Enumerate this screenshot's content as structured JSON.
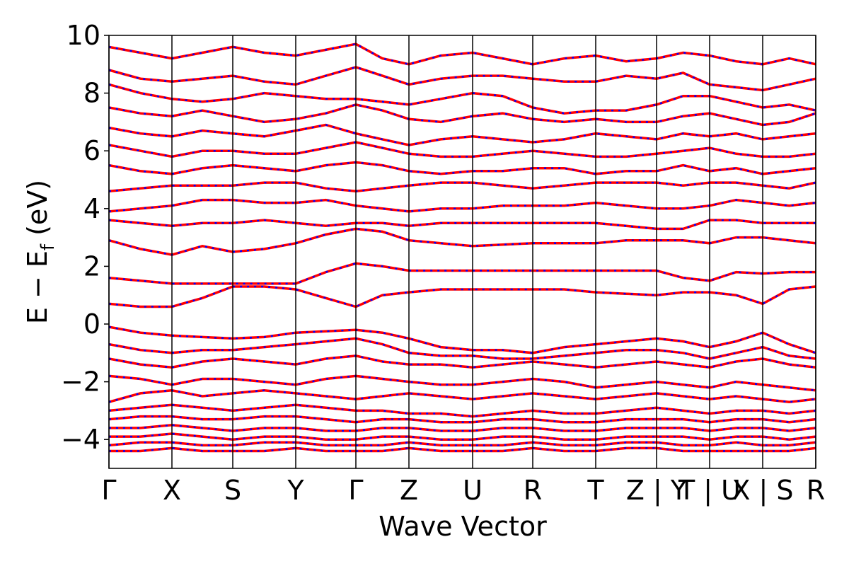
{
  "chart_data": {
    "type": "bands",
    "xlabel": "Wave Vector",
    "ylabel": [
      "E − E",
      "f",
      " (eV)"
    ],
    "line_color": "#ff0000",
    "dash_color": "#0000ff",
    "xlim": [
      0,
      9.99
    ],
    "ylim": [
      -5,
      10
    ],
    "xticks": [
      {
        "value": 0,
        "label": "Γ"
      },
      {
        "value": 0.89,
        "label": "X"
      },
      {
        "value": 1.75,
        "label": "S"
      },
      {
        "value": 2.64,
        "label": "Y"
      },
      {
        "value": 3.49,
        "label": "Γ"
      },
      {
        "value": 4.24,
        "label": "Z"
      },
      {
        "value": 5.14,
        "label": "U"
      },
      {
        "value": 5.99,
        "label": "R"
      },
      {
        "value": 6.88,
        "label": "T"
      },
      {
        "value": 7.74,
        "label": "Z | Y"
      },
      {
        "value": 8.49,
        "label": "T | U"
      },
      {
        "value": 9.24,
        "label": "X | S"
      },
      {
        "value": 9.99,
        "label": "R"
      }
    ],
    "yticks": [
      {
        "value": -4,
        "label": "−4"
      },
      {
        "value": -2,
        "label": "−2"
      },
      0,
      2,
      4,
      6,
      8,
      10
    ],
    "x": [
      0,
      0.445,
      0.89,
      1.32,
      1.75,
      2.195,
      2.64,
      3.065,
      3.49,
      3.865,
      4.24,
      4.69,
      5.14,
      5.565,
      5.99,
      6.435,
      6.88,
      7.31,
      7.74,
      8.115,
      8.49,
      8.865,
      9.24,
      9.615,
      9.99
    ],
    "series": [
      {
        "values": [
          0.7,
          0.6,
          0.6,
          0.9,
          1.3,
          1.3,
          1.2,
          0.9,
          0.6,
          1.0,
          1.1,
          1.2,
          1.2,
          1.2,
          1.2,
          1.2,
          1.1,
          1.05,
          1.0,
          1.1,
          1.1,
          1.0,
          0.7,
          1.2,
          1.3
        ]
      },
      {
        "values": [
          1.6,
          1.5,
          1.4,
          1.4,
          1.4,
          1.4,
          1.4,
          1.8,
          2.1,
          2.0,
          1.85,
          1.85,
          1.85,
          1.85,
          1.85,
          1.85,
          1.85,
          1.85,
          1.85,
          1.6,
          1.5,
          1.8,
          1.75,
          1.8,
          1.8
        ]
      },
      {
        "values": [
          2.9,
          2.6,
          2.4,
          2.7,
          2.5,
          2.6,
          2.8,
          3.1,
          3.3,
          3.2,
          2.9,
          2.8,
          2.7,
          2.75,
          2.8,
          2.8,
          2.8,
          2.9,
          2.9,
          2.9,
          2.8,
          3.0,
          3.0,
          2.9,
          2.8
        ]
      },
      {
        "values": [
          3.6,
          3.5,
          3.4,
          3.5,
          3.5,
          3.6,
          3.5,
          3.4,
          3.5,
          3.5,
          3.4,
          3.5,
          3.5,
          3.5,
          3.5,
          3.5,
          3.5,
          3.4,
          3.3,
          3.3,
          3.6,
          3.6,
          3.5,
          3.5,
          3.5
        ]
      },
      {
        "values": [
          3.9,
          4.0,
          4.1,
          4.3,
          4.3,
          4.2,
          4.2,
          4.3,
          4.1,
          4.0,
          3.9,
          4.0,
          4.0,
          4.1,
          4.1,
          4.1,
          4.2,
          4.1,
          4.0,
          4.0,
          4.1,
          4.3,
          4.2,
          4.1,
          4.2
        ]
      },
      {
        "values": [
          4.6,
          4.7,
          4.8,
          4.8,
          4.8,
          4.9,
          4.9,
          4.7,
          4.6,
          4.7,
          4.8,
          4.9,
          4.9,
          4.8,
          4.7,
          4.8,
          4.9,
          4.9,
          4.9,
          4.8,
          4.9,
          4.9,
          4.8,
          4.7,
          4.9
        ]
      },
      {
        "values": [
          5.5,
          5.3,
          5.2,
          5.4,
          5.5,
          5.4,
          5.3,
          5.5,
          5.6,
          5.5,
          5.3,
          5.2,
          5.3,
          5.3,
          5.4,
          5.4,
          5.2,
          5.3,
          5.3,
          5.5,
          5.3,
          5.4,
          5.2,
          5.3,
          5.4
        ]
      },
      {
        "values": [
          6.2,
          6.0,
          5.8,
          6.0,
          6.0,
          5.9,
          5.9,
          6.1,
          6.3,
          6.1,
          5.9,
          5.8,
          5.8,
          5.9,
          6.0,
          5.9,
          5.8,
          5.8,
          5.9,
          6.0,
          6.1,
          5.9,
          5.8,
          5.8,
          5.9
        ]
      },
      {
        "values": [
          6.8,
          6.6,
          6.5,
          6.7,
          6.6,
          6.5,
          6.7,
          6.9,
          6.6,
          6.4,
          6.2,
          6.4,
          6.5,
          6.4,
          6.3,
          6.4,
          6.6,
          6.5,
          6.4,
          6.6,
          6.5,
          6.6,
          6.4,
          6.5,
          6.6
        ]
      },
      {
        "values": [
          7.5,
          7.3,
          7.2,
          7.4,
          7.2,
          7.0,
          7.1,
          7.3,
          7.6,
          7.4,
          7.1,
          7.0,
          7.2,
          7.3,
          7.1,
          7.0,
          7.1,
          7.0,
          7.0,
          7.2,
          7.3,
          7.1,
          6.9,
          7.0,
          7.3
        ]
      },
      {
        "values": [
          8.3,
          8.0,
          7.8,
          7.7,
          7.8,
          8.0,
          7.9,
          7.8,
          7.8,
          7.7,
          7.6,
          7.8,
          8.0,
          7.9,
          7.5,
          7.3,
          7.4,
          7.4,
          7.6,
          7.9,
          7.9,
          7.7,
          7.5,
          7.6,
          7.4
        ]
      },
      {
        "values": [
          8.8,
          8.5,
          8.4,
          8.5,
          8.6,
          8.4,
          8.3,
          8.6,
          8.9,
          8.6,
          8.3,
          8.5,
          8.6,
          8.6,
          8.5,
          8.4,
          8.4,
          8.6,
          8.5,
          8.7,
          8.3,
          8.2,
          8.1,
          8.3,
          8.5
        ]
      },
      {
        "values": [
          9.6,
          9.4,
          9.2,
          9.4,
          9.6,
          9.4,
          9.3,
          9.5,
          9.7,
          9.2,
          9.0,
          9.3,
          9.4,
          9.2,
          9.0,
          9.2,
          9.3,
          9.1,
          9.2,
          9.4,
          9.3,
          9.1,
          9.0,
          9.2,
          9.0
        ]
      },
      {
        "values": [
          -0.1,
          -0.3,
          -0.4,
          -0.45,
          -0.5,
          -0.45,
          -0.3,
          -0.25,
          -0.2,
          -0.3,
          -0.5,
          -0.8,
          -0.9,
          -0.9,
          -1.0,
          -0.8,
          -0.7,
          -0.6,
          -0.5,
          -0.6,
          -0.8,
          -0.6,
          -0.3,
          -0.7,
          -1.0
        ]
      },
      {
        "values": [
          -0.7,
          -0.9,
          -1.0,
          -0.9,
          -0.9,
          -0.8,
          -0.7,
          -0.6,
          -0.5,
          -0.7,
          -1.0,
          -1.1,
          -1.1,
          -1.2,
          -1.2,
          -1.1,
          -1.0,
          -0.9,
          -0.9,
          -1.0,
          -1.2,
          -1.0,
          -0.8,
          -1.1,
          -1.2
        ]
      },
      {
        "values": [
          -1.2,
          -1.4,
          -1.5,
          -1.3,
          -1.2,
          -1.3,
          -1.4,
          -1.2,
          -1.1,
          -1.3,
          -1.4,
          -1.4,
          -1.5,
          -1.4,
          -1.3,
          -1.4,
          -1.5,
          -1.4,
          -1.3,
          -1.4,
          -1.5,
          -1.3,
          -1.2,
          -1.4,
          -1.5
        ]
      },
      {
        "values": [
          -1.8,
          -1.9,
          -2.1,
          -1.9,
          -1.9,
          -2.0,
          -2.1,
          -1.9,
          -1.8,
          -1.9,
          -2.0,
          -2.1,
          -2.1,
          -2.0,
          -1.9,
          -2.0,
          -2.2,
          -2.1,
          -2.0,
          -2.1,
          -2.2,
          -2.0,
          -2.1,
          -2.2,
          -2.3
        ]
      },
      {
        "values": [
          -2.7,
          -2.4,
          -2.3,
          -2.5,
          -2.4,
          -2.3,
          -2.4,
          -2.5,
          -2.6,
          -2.5,
          -2.4,
          -2.5,
          -2.6,
          -2.5,
          -2.4,
          -2.5,
          -2.6,
          -2.5,
          -2.4,
          -2.5,
          -2.6,
          -2.5,
          -2.6,
          -2.7,
          -2.6
        ]
      },
      {
        "values": [
          -3.0,
          -2.9,
          -2.8,
          -2.9,
          -3.0,
          -2.9,
          -2.8,
          -2.9,
          -3.0,
          -3.0,
          -3.1,
          -3.1,
          -3.2,
          -3.1,
          -3.0,
          -3.1,
          -3.1,
          -3.0,
          -2.9,
          -3.0,
          -3.1,
          -3.0,
          -3.0,
          -3.1,
          -3.0
        ]
      },
      {
        "values": [
          -3.3,
          -3.2,
          -3.2,
          -3.3,
          -3.3,
          -3.2,
          -3.2,
          -3.3,
          -3.4,
          -3.3,
          -3.3,
          -3.4,
          -3.4,
          -3.3,
          -3.3,
          -3.4,
          -3.4,
          -3.3,
          -3.3,
          -3.3,
          -3.4,
          -3.3,
          -3.3,
          -3.4,
          -3.3
        ]
      },
      {
        "values": [
          -3.6,
          -3.6,
          -3.5,
          -3.6,
          -3.7,
          -3.6,
          -3.6,
          -3.7,
          -3.7,
          -3.6,
          -3.6,
          -3.7,
          -3.7,
          -3.6,
          -3.6,
          -3.7,
          -3.7,
          -3.6,
          -3.6,
          -3.6,
          -3.7,
          -3.6,
          -3.6,
          -3.7,
          -3.6
        ]
      },
      {
        "values": [
          -3.9,
          -3.9,
          -3.8,
          -3.9,
          -4.0,
          -3.9,
          -3.9,
          -4.0,
          -4.0,
          -3.9,
          -3.9,
          -4.0,
          -4.0,
          -3.9,
          -3.9,
          -4.0,
          -4.0,
          -3.9,
          -3.9,
          -3.9,
          -4.0,
          -3.9,
          -3.9,
          -4.0,
          -3.9
        ]
      },
      {
        "values": [
          -4.2,
          -4.1,
          -4.1,
          -4.2,
          -4.2,
          -4.1,
          -4.1,
          -4.2,
          -4.2,
          -4.2,
          -4.1,
          -4.2,
          -4.2,
          -4.2,
          -4.1,
          -4.2,
          -4.2,
          -4.1,
          -4.1,
          -4.2,
          -4.2,
          -4.1,
          -4.2,
          -4.2,
          -4.1
        ]
      },
      {
        "values": [
          -4.4,
          -4.4,
          -4.3,
          -4.4,
          -4.4,
          -4.4,
          -4.3,
          -4.4,
          -4.4,
          -4.4,
          -4.3,
          -4.4,
          -4.4,
          -4.4,
          -4.3,
          -4.4,
          -4.4,
          -4.3,
          -4.3,
          -4.4,
          -4.4,
          -4.4,
          -4.4,
          -4.4,
          -4.3
        ]
      }
    ]
  }
}
